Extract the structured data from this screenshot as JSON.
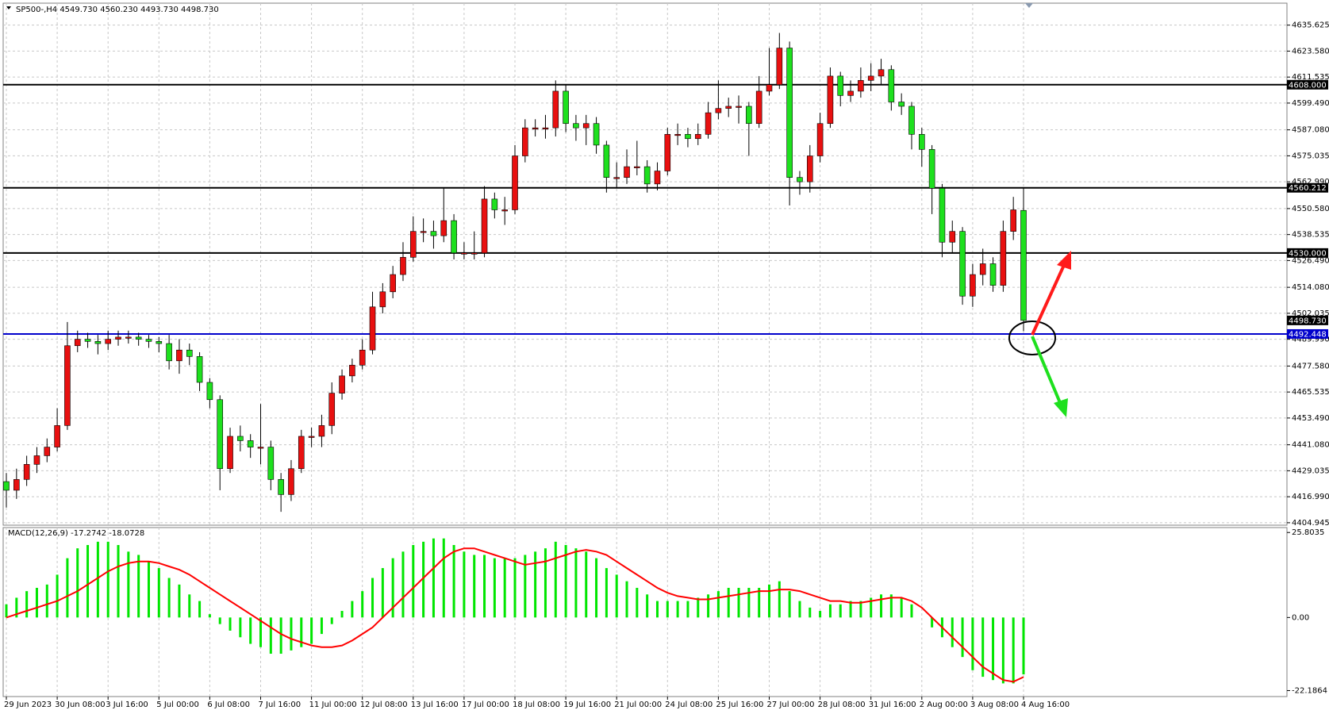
{
  "chart_data": [
    {
      "type": "candlestick",
      "title": "SP500-,H4  4549.730 4560.230 4493.730 4498.730",
      "up_color": "#e81010",
      "down_color": "#1ee01e",
      "grid": true,
      "categories": [
        "29 Jun 2023",
        null,
        null,
        null,
        null,
        "30 Jun 08:00",
        null,
        null,
        null,
        null,
        "3 Jul 16:00",
        null,
        null,
        null,
        null,
        "5 Jul 00:00",
        null,
        null,
        null,
        null,
        "6 Jul 08:00",
        null,
        null,
        null,
        null,
        "7 Jul 16:00",
        null,
        null,
        null,
        null,
        "11 Jul 00:00",
        null,
        null,
        null,
        null,
        "12 Jul 08:00",
        null,
        null,
        null,
        null,
        "13 Jul 16:00",
        null,
        null,
        null,
        null,
        "17 Jul 00:00",
        null,
        null,
        null,
        null,
        "18 Jul 08:00",
        null,
        null,
        null,
        null,
        "19 Jul 16:00",
        null,
        null,
        null,
        null,
        "21 Jul 00:00",
        null,
        null,
        null,
        null,
        "24 Jul 08:00",
        null,
        null,
        null,
        null,
        "25 Jul 16:00",
        null,
        null,
        null,
        null,
        "27 Jul 00:00",
        null,
        null,
        null,
        null,
        "28 Jul 08:00",
        null,
        null,
        null,
        null,
        "31 Jul 16:00",
        null,
        null,
        null,
        null,
        "2 Aug 00:00",
        null,
        null,
        null,
        null,
        "3 Aug 08:00",
        null,
        null,
        null,
        null,
        "4 Aug 16:00"
      ],
      "open": [
        4424,
        4420,
        4425,
        4432,
        4436,
        4440,
        4450,
        4487,
        4490,
        4489,
        4488,
        4490,
        4491,
        4491,
        4490,
        4489,
        4488,
        4480,
        4485,
        4482,
        4470,
        4462,
        4430,
        4445,
        4443,
        4440,
        4440,
        4425,
        4418,
        4430,
        4445,
        4445,
        4450,
        4465,
        4473,
        4478,
        4485,
        4505,
        4512,
        4520,
        4528,
        4540,
        4540,
        4538,
        4545,
        4530,
        4530,
        4530,
        4555,
        4550,
        4550,
        4575,
        4588,
        4588,
        4588,
        4605,
        4590,
        4588,
        4590,
        4580,
        4565,
        4565,
        4570,
        4570,
        4562,
        4568,
        4585,
        4585,
        4583,
        4585,
        4595,
        4597,
        4598,
        4598,
        4590,
        4605,
        4608,
        4625,
        4565,
        4563,
        4575,
        4590,
        4612,
        4603,
        4605,
        4610,
        4612,
        4615,
        4600,
        4598,
        4585,
        4578,
        4560,
        4535,
        4540,
        4510,
        4520,
        4525,
        4515,
        4540,
        4549.73
      ],
      "high": [
        4428,
        4430,
        4436,
        4440,
        4444,
        4458,
        4498,
        4494,
        4493,
        4492,
        4494,
        4494,
        4494,
        4493,
        4492,
        4491,
        4492,
        4490,
        4488,
        4484,
        4472,
        4464,
        4449,
        4450,
        4446,
        4460,
        4443,
        4428,
        4434,
        4448,
        4449,
        4455,
        4470,
        4476,
        4481,
        4490,
        4512,
        4516,
        4524,
        4535,
        4547,
        4546,
        4545,
        4560,
        4548,
        4535,
        4540,
        4561,
        4558,
        4556,
        4580,
        4592,
        4592,
        4594,
        4610,
        4608,
        4594,
        4594,
        4593,
        4582,
        4572,
        4578,
        4582,
        4573,
        4572,
        4588,
        4590,
        4588,
        4590,
        4600,
        4610,
        4602,
        4603,
        4600,
        4612,
        4625,
        4632,
        4628,
        4568,
        4580,
        4595,
        4616,
        4614,
        4610,
        4616,
        4618,
        4620,
        4617,
        4604,
        4600,
        4588,
        4580,
        4562,
        4545,
        4542,
        4525,
        4532,
        4528,
        4545,
        4556,
        4560.23
      ],
      "low": [
        4412,
        4416,
        4422,
        4428,
        4433,
        4438,
        4448,
        4484,
        4486,
        4483,
        4485,
        4487,
        4488,
        4487,
        4486,
        4484,
        4476,
        4474,
        4478,
        4466,
        4458,
        4420,
        4428,
        4438,
        4435,
        4432,
        4420,
        4410,
        4415,
        4428,
        4440,
        4440,
        4446,
        4462,
        4470,
        4476,
        4483,
        4502,
        4509,
        4517,
        4526,
        4535,
        4532,
        4535,
        4527,
        4527,
        4527,
        4528,
        4546,
        4543,
        4548,
        4572,
        4584,
        4583,
        4584,
        4586,
        4582,
        4580,
        4576,
        4558,
        4560,
        4562,
        4566,
        4558,
        4559,
        4566,
        4580,
        4579,
        4580,
        4583,
        4592,
        4593,
        4590,
        4575,
        4588,
        4603,
        4606,
        4552,
        4557,
        4558,
        4572,
        4588,
        4598,
        4600,
        4602,
        4605,
        4608,
        4596,
        4594,
        4578,
        4570,
        4548,
        4528,
        4530,
        4506,
        4505,
        4515,
        4512,
        4512,
        4536,
        4493.73
      ],
      "close": [
        4420,
        4425,
        4432,
        4436,
        4440,
        4450,
        4487,
        4490,
        4489,
        4488,
        4490,
        4491,
        4491,
        4490,
        4489,
        4488,
        4480,
        4485,
        4482,
        4470,
        4462,
        4430,
        4445,
        4443,
        4440,
        4440,
        4425,
        4418,
        4430,
        4445,
        4445,
        4450,
        4465,
        4473,
        4478,
        4485,
        4505,
        4512,
        4520,
        4528,
        4540,
        4540,
        4538,
        4545,
        4530,
        4530,
        4530,
        4555,
        4550,
        4550,
        4575,
        4588,
        4588,
        4588,
        4605,
        4590,
        4588,
        4590,
        4580,
        4565,
        4565,
        4570,
        4570,
        4562,
        4568,
        4585,
        4585,
        4583,
        4585,
        4595,
        4597,
        4598,
        4598,
        4590,
        4605,
        4608,
        4625,
        4565,
        4563,
        4575,
        4590,
        4612,
        4603,
        4605,
        4610,
        4612,
        4615,
        4600,
        4598,
        4585,
        4578,
        4560,
        4535,
        4540,
        4510,
        4520,
        4525,
        4515,
        4540,
        4550,
        4498.73
      ],
      "ylim": [
        4403.8,
        4645.8
      ],
      "yticks": [
        {
          "value": 4635.625,
          "label": "4635.625"
        },
        {
          "value": 4623.58,
          "label": "4623.580"
        },
        {
          "value": 4611.535,
          "label": "4611.535"
        },
        {
          "value": 4599.49,
          "label": "4599.490"
        },
        {
          "value": 4587.08,
          "label": "4587.080"
        },
        {
          "value": 4575.035,
          "label": "4575.035"
        },
        {
          "value": 4562.99,
          "label": "4562.990"
        },
        {
          "value": 4550.58,
          "label": "4550.580"
        },
        {
          "value": 4538.535,
          "label": "4538.535"
        },
        {
          "value": 4526.49,
          "label": "4526.490"
        },
        {
          "value": 4514.08,
          "label": "4514.080"
        },
        {
          "value": 4502.035,
          "label": "4502.035"
        },
        {
          "value": 4489.99,
          "label": "4489.990"
        },
        {
          "value": 4477.58,
          "label": "4477.580"
        },
        {
          "value": 4465.535,
          "label": "4465.535"
        },
        {
          "value": 4453.49,
          "label": "4453.490"
        },
        {
          "value": 4441.08,
          "label": "4441.080"
        },
        {
          "value": 4429.035,
          "label": "4429.035"
        },
        {
          "value": 4416.99,
          "label": "4416.990"
        },
        {
          "value": 4404.945,
          "label": "4404.945"
        }
      ],
      "levels": [
        {
          "value": 4608,
          "label": "4608.000",
          "color": "#000000"
        },
        {
          "value": 4560.212,
          "label": "4560.212",
          "color": "#000000"
        },
        {
          "value": 4530,
          "label": "4530.000",
          "color": "#000000"
        },
        {
          "value": 4492.448,
          "label": "4492.448",
          "color": "#0000cc"
        }
      ],
      "price_label": {
        "value": 4498.73,
        "label": "4498.730"
      }
    },
    {
      "type": "macd",
      "title": "MACD(12,26,9) -17.2742 -18.0728",
      "color": "#00e600",
      "signal_color": "#ff0000",
      "values": [
        4,
        6,
        8,
        9,
        10,
        13,
        18,
        21,
        22,
        23,
        23,
        22,
        20,
        19,
        17,
        15,
        12,
        10,
        7,
        5,
        1,
        -2,
        -4,
        -6,
        -8,
        -9,
        -11,
        -11,
        -10,
        -9,
        -8,
        -5,
        -2,
        2,
        5,
        8,
        12,
        15,
        18,
        20,
        22,
        23,
        24,
        24,
        22,
        20,
        19,
        19,
        18,
        18,
        18,
        19,
        20,
        21,
        23,
        22,
        21,
        20,
        18,
        15,
        13,
        11,
        9,
        7,
        5,
        5,
        5,
        5,
        6,
        7,
        8,
        9,
        9,
        9,
        9,
        10,
        11,
        8,
        5,
        3,
        2,
        4,
        4,
        5,
        5,
        6,
        7,
        7,
        6,
        4,
        0,
        -3,
        -6,
        -9,
        -12,
        -16,
        -18,
        -19,
        -20,
        -20,
        -17.2742
      ],
      "signal": [
        0,
        1,
        2,
        3,
        4,
        5,
        6.5,
        8,
        10,
        12,
        14,
        15.5,
        16.5,
        17,
        17,
        16.5,
        15.5,
        14.5,
        13,
        11,
        9,
        7,
        5,
        3,
        1,
        -1,
        -3,
        -5,
        -6.5,
        -7.5,
        -8.5,
        -9,
        -9,
        -8.5,
        -7,
        -5,
        -3,
        0,
        3,
        6,
        9,
        12,
        15,
        18,
        20,
        21,
        21,
        20,
        19,
        18,
        17,
        16,
        16.5,
        17,
        18,
        19,
        20,
        20.5,
        20,
        19,
        17,
        15,
        13,
        11,
        9,
        7.5,
        6.5,
        6,
        5.5,
        5.5,
        6,
        6.5,
        7,
        7.5,
        8,
        8,
        8.5,
        8.5,
        8,
        7,
        6,
        5,
        5,
        4.5,
        4.5,
        5,
        5.5,
        6,
        6,
        5,
        3,
        0,
        -3,
        -6,
        -9,
        -12,
        -15,
        -17,
        -19,
        -19.5,
        -18.0728
      ],
      "ylim": [
        -24.0,
        27.3
      ],
      "yticks": [
        25.8035,
        {
          "value": 0,
          "label": "0.00"
        },
        -22.1864
      ]
    }
  ]
}
